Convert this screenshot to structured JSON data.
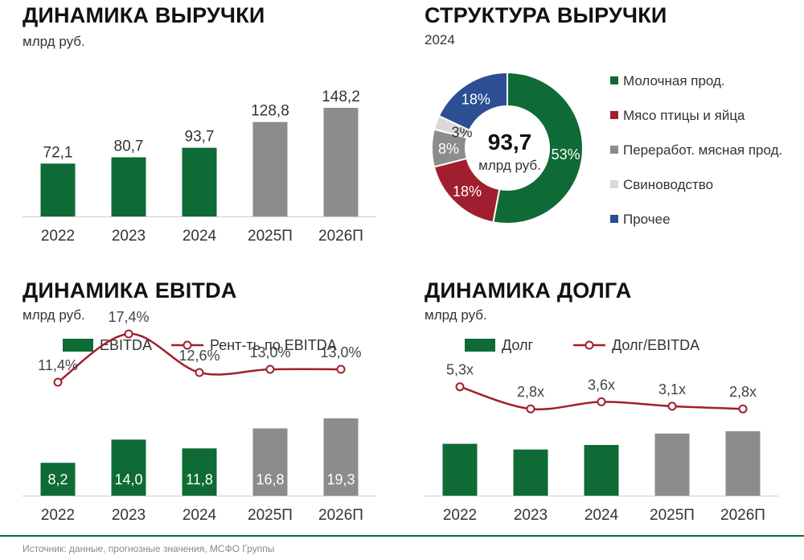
{
  "colors": {
    "green": "#0e6b35",
    "gray": "#8c8c8c",
    "red": "#a01f2e",
    "lightgray": "#d9d9d9",
    "blue": "#2c4f93"
  },
  "source_text": "Источник: данные, прогнозные значения, МСФО Группы",
  "chart_data": [
    {
      "type": "bar",
      "title": "ДИНАМИКА ВЫРУЧКИ",
      "subtitle": "млрд руб.",
      "categories": [
        "2022",
        "2023",
        "2024",
        "2025П",
        "2026П"
      ],
      "values": [
        72.1,
        80.7,
        93.7,
        128.8,
        148.2
      ],
      "value_labels": [
        "72,1",
        "80,7",
        "93,7",
        "128,8",
        "148,2"
      ],
      "forecast_flags": [
        false,
        false,
        false,
        true,
        true
      ],
      "ylim": [
        0,
        160
      ]
    },
    {
      "type": "pie",
      "title": "СТРУКТУРА ВЫРУЧКИ",
      "subtitle": "2024",
      "center_value": "93,7",
      "center_unit": "млрд руб.",
      "slices": [
        {
          "name": "Молочная прод.",
          "value": 53,
          "label": "53%",
          "color_key": "green"
        },
        {
          "name": "Мясо птицы и яйца",
          "value": 18,
          "label": "18%",
          "color_key": "red"
        },
        {
          "name": "Переработ. мясная прод.",
          "value": 8,
          "label": "8%",
          "color_key": "gray"
        },
        {
          "name": "Свиноводство",
          "value": 3,
          "label": "3%",
          "color_key": "lightgray"
        },
        {
          "name": "Прочее",
          "value": 18,
          "label": "18%",
          "color_key": "blue"
        }
      ]
    },
    {
      "type": "bar",
      "title": "ДИНАМИКА EBITDA",
      "subtitle": "млрд руб.",
      "legend": {
        "bar": "EBITDA",
        "line": "Рент-ть по EBITDA"
      },
      "categories": [
        "2022",
        "2023",
        "2024",
        "2025П",
        "2026П"
      ],
      "values": [
        8.2,
        14.0,
        11.8,
        16.8,
        19.3
      ],
      "value_labels": [
        "8,2",
        "14,0",
        "11,8",
        "16,8",
        "19,3"
      ],
      "forecast_flags": [
        false,
        false,
        false,
        true,
        true
      ],
      "ylim": [
        0,
        22
      ],
      "line_values": [
        11.4,
        17.4,
        12.6,
        13.0,
        13.0
      ],
      "line_labels": [
        "11,4%",
        "17,4%",
        "12,6%",
        "13,0%",
        "13,0%"
      ],
      "line_ylim": [
        5,
        30
      ]
    },
    {
      "type": "bar",
      "title": "ДИНАМИКА ДОЛГА",
      "subtitle": "млрд руб.",
      "legend": {
        "bar": "Долг",
        "line": "Долг/EBITDA"
      },
      "categories": [
        "2022",
        "2023",
        "2024",
        "2025П",
        "2026П"
      ],
      "values": [
        43.5,
        38.7,
        42.5,
        52.1,
        54.0
      ],
      "forecast_flags": [
        false,
        false,
        false,
        true,
        true
      ],
      "ylim": [
        0,
        90
      ],
      "line_values": [
        5.3,
        2.8,
        3.6,
        3.1,
        2.8
      ],
      "line_labels": [
        "5,3x",
        "2,8x",
        "3,6x",
        "3,1x",
        "2,8x"
      ],
      "line_ylim": [
        0,
        7
      ]
    }
  ]
}
